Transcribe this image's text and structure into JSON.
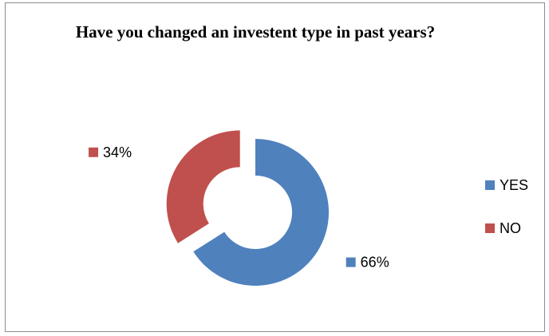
{
  "chart_data": {
    "type": "pie",
    "variant": "doughnut-exploded",
    "title": "Have you changed an investent type in past years?",
    "categories": [
      "YES",
      "NO"
    ],
    "values": [
      66,
      34
    ],
    "data_labels": [
      "66%",
      "34%"
    ],
    "colors": [
      "#4f81bd",
      "#c0504d"
    ],
    "legend": {
      "placement": "right",
      "entries": [
        "YES",
        "NO"
      ]
    }
  }
}
